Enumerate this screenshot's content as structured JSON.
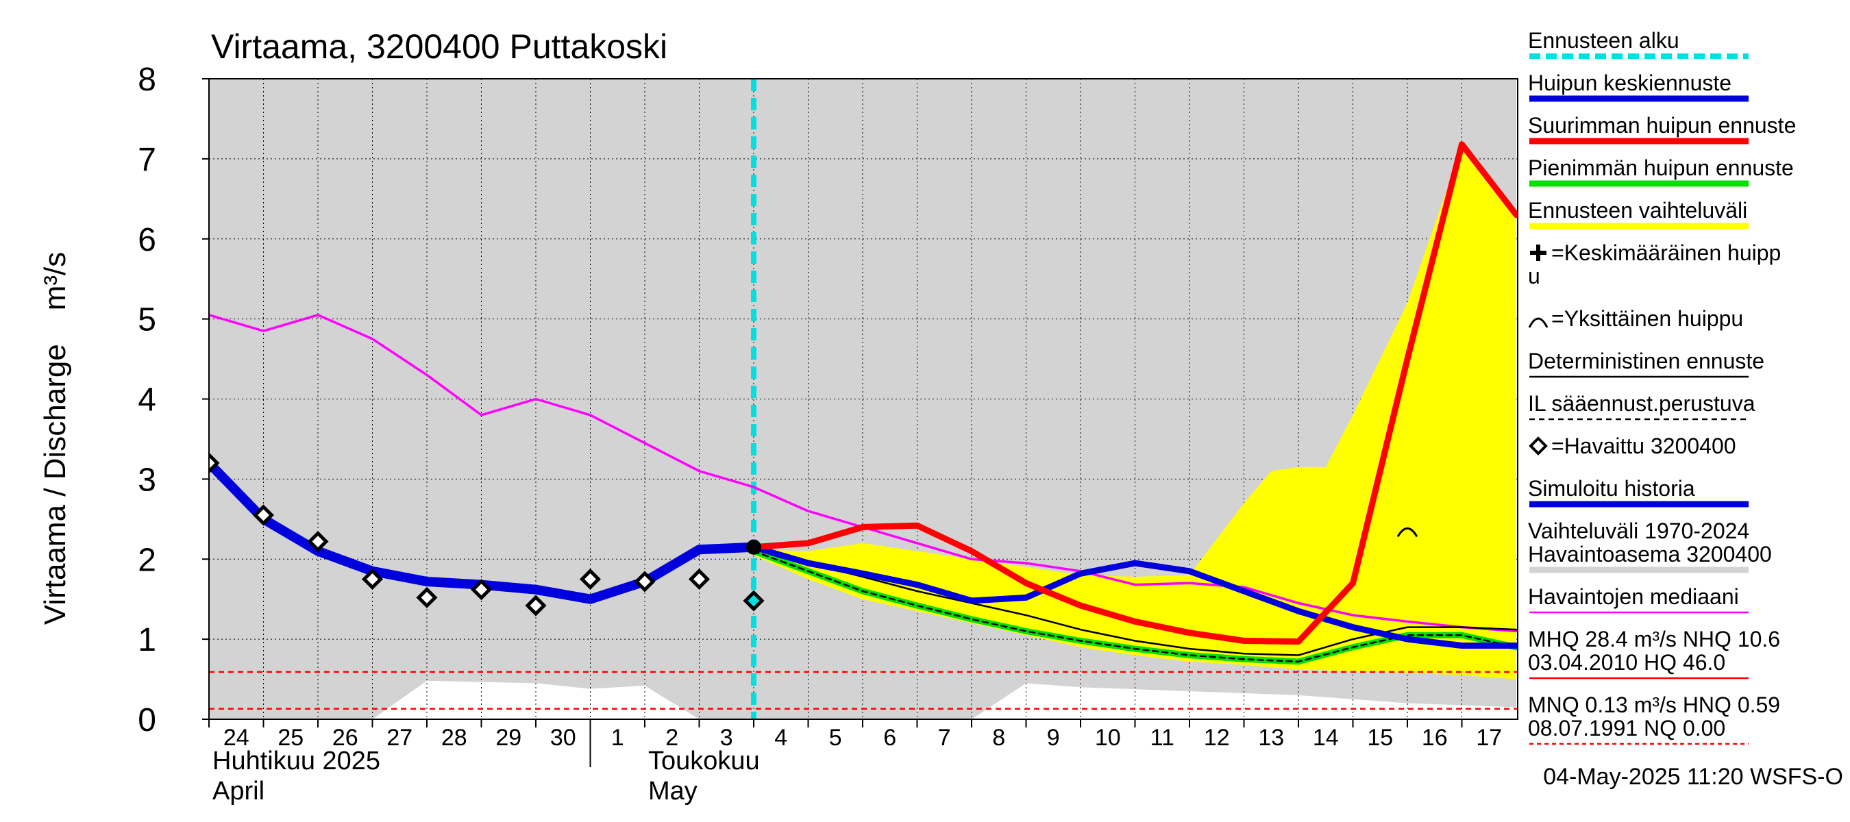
{
  "chart_data": {
    "type": "line",
    "title": "Virtaama, 3200400 Puttakoski",
    "ylabel": "Virtaama / Discharge    m³/s",
    "ylim": [
      0,
      8
    ],
    "yticks": [
      "0",
      "1",
      "2",
      "3",
      "4",
      "5",
      "6",
      "7",
      "8"
    ],
    "x_domain": [
      24,
      48
    ],
    "day_ticks": [
      {
        "x": 24,
        "label": "24"
      },
      {
        "x": 25,
        "label": "25"
      },
      {
        "x": 26,
        "label": "26"
      },
      {
        "x": 27,
        "label": "27"
      },
      {
        "x": 28,
        "label": "28"
      },
      {
        "x": 29,
        "label": "29"
      },
      {
        "x": 30,
        "label": "30"
      },
      {
        "x": 31,
        "label": "1"
      },
      {
        "x": 32,
        "label": "2"
      },
      {
        "x": 33,
        "label": "3"
      },
      {
        "x": 34,
        "label": "4"
      },
      {
        "x": 35,
        "label": "5"
      },
      {
        "x": 36,
        "label": "6"
      },
      {
        "x": 37,
        "label": "7"
      },
      {
        "x": 38,
        "label": "8"
      },
      {
        "x": 39,
        "label": "9"
      },
      {
        "x": 40,
        "label": "10"
      },
      {
        "x": 41,
        "label": "11"
      },
      {
        "x": 42,
        "label": "12"
      },
      {
        "x": 43,
        "label": "13"
      },
      {
        "x": 44,
        "label": "14"
      },
      {
        "x": 45,
        "label": "15"
      },
      {
        "x": 46,
        "label": "16"
      },
      {
        "x": 47,
        "label": "17"
      }
    ],
    "month_labels": [
      {
        "x": 24,
        "fi": "Huhtikuu  2025",
        "en": "April"
      },
      {
        "x": 32,
        "fi": "Toukokuu",
        "en": "May"
      }
    ],
    "month_divider_x": 31,
    "forecast_start_x": 34,
    "history_range": {
      "upper": [
        [
          24,
          8
        ],
        [
          48,
          8
        ]
      ],
      "lower": [
        [
          24,
          0
        ],
        [
          27,
          0
        ],
        [
          28,
          0.48
        ],
        [
          30,
          0.45
        ],
        [
          31,
          0.38
        ],
        [
          32,
          0.42
        ],
        [
          33,
          0
        ],
        [
          38,
          0
        ],
        [
          39,
          0.45
        ],
        [
          40,
          0.4
        ],
        [
          42,
          0.35
        ],
        [
          44,
          0.3
        ],
        [
          46,
          0.2
        ],
        [
          48,
          0.15
        ]
      ]
    },
    "forecast_range": {
      "upper": [
        [
          34,
          2.12
        ],
        [
          35,
          2.1
        ],
        [
          36,
          2.2
        ],
        [
          37,
          2.1
        ],
        [
          38,
          2.0
        ],
        [
          39,
          1.9
        ],
        [
          40,
          1.8
        ],
        [
          41,
          1.78
        ],
        [
          42,
          1.8
        ],
        [
          43,
          2.7
        ],
        [
          43.5,
          3.1
        ],
        [
          44,
          3.15
        ],
        [
          44.5,
          3.15
        ],
        [
          45,
          3.8
        ],
        [
          46,
          5.2
        ],
        [
          47,
          7.15
        ],
        [
          48,
          6.3
        ]
      ],
      "lower": [
        [
          34,
          2.05
        ],
        [
          35,
          1.75
        ],
        [
          36,
          1.5
        ],
        [
          37,
          1.35
        ],
        [
          38,
          1.2
        ],
        [
          39,
          1.05
        ],
        [
          40,
          0.9
        ],
        [
          41,
          0.8
        ],
        [
          42,
          0.72
        ],
        [
          43,
          0.68
        ],
        [
          44,
          0.62
        ],
        [
          45,
          0.6
        ],
        [
          46,
          0.58
        ],
        [
          47,
          0.55
        ],
        [
          48,
          0.5
        ]
      ]
    },
    "series": [
      {
        "name": "Havaintojen mediaani",
        "color": "#ff00ff",
        "width": 3.5,
        "points": [
          [
            24,
            5.05
          ],
          [
            25,
            4.85
          ],
          [
            26,
            5.05
          ],
          [
            27,
            4.75
          ],
          [
            28,
            4.3
          ],
          [
            29,
            3.8
          ],
          [
            30,
            4.0
          ],
          [
            31,
            3.8
          ],
          [
            32,
            3.45
          ],
          [
            33,
            3.1
          ],
          [
            34,
            2.9
          ],
          [
            35,
            2.6
          ],
          [
            36,
            2.4
          ],
          [
            37,
            2.2
          ],
          [
            38,
            2.0
          ],
          [
            39,
            1.95
          ],
          [
            40,
            1.85
          ],
          [
            41,
            1.68
          ],
          [
            42,
            1.7
          ],
          [
            43,
            1.65
          ],
          [
            44,
            1.45
          ],
          [
            45,
            1.3
          ],
          [
            46,
            1.22
          ],
          [
            47,
            1.15
          ],
          [
            48,
            1.1
          ]
        ]
      },
      {
        "name": "Simuloitu historia",
        "color": "#0000dd",
        "width": 14,
        "points": [
          [
            24,
            3.2
          ],
          [
            25,
            2.5
          ],
          [
            26,
            2.1
          ],
          [
            27,
            1.85
          ],
          [
            28,
            1.72
          ],
          [
            29,
            1.68
          ],
          [
            30,
            1.62
          ],
          [
            31,
            1.5
          ],
          [
            32,
            1.72
          ],
          [
            33,
            2.12
          ],
          [
            34,
            2.15
          ]
        ]
      },
      {
        "name": "Pienimmän huipun ennuste",
        "color": "#00e000",
        "width": 9,
        "points": [
          [
            34,
            2.1
          ],
          [
            35,
            1.85
          ],
          [
            36,
            1.6
          ],
          [
            37,
            1.42
          ],
          [
            38,
            1.25
          ],
          [
            39,
            1.1
          ],
          [
            40,
            0.98
          ],
          [
            41,
            0.88
          ],
          [
            42,
            0.8
          ],
          [
            43,
            0.75
          ],
          [
            44,
            0.72
          ],
          [
            45,
            0.9
          ],
          [
            46,
            1.05
          ],
          [
            47,
            1.05
          ],
          [
            48,
            0.9
          ]
        ]
      },
      {
        "name": "IL sääennust.perustuva",
        "color": "#000000",
        "width": 2.5,
        "dash": true,
        "points": [
          [
            34,
            2.1
          ],
          [
            35,
            1.85
          ],
          [
            36,
            1.6
          ],
          [
            37,
            1.42
          ],
          [
            38,
            1.25
          ],
          [
            39,
            1.1
          ],
          [
            40,
            0.98
          ],
          [
            41,
            0.88
          ],
          [
            42,
            0.8
          ],
          [
            43,
            0.75
          ],
          [
            44,
            0.72
          ],
          [
            45,
            0.9
          ],
          [
            46,
            1.05
          ],
          [
            47,
            1.05
          ],
          [
            48,
            0.9
          ]
        ]
      },
      {
        "name": "Deterministinen ennuste",
        "color": "#000000",
        "width": 2.5,
        "points": [
          [
            34,
            2.12
          ],
          [
            35,
            1.95
          ],
          [
            36,
            1.78
          ],
          [
            37,
            1.6
          ],
          [
            38,
            1.45
          ],
          [
            39,
            1.3
          ],
          [
            40,
            1.12
          ],
          [
            41,
            0.98
          ],
          [
            42,
            0.88
          ],
          [
            43,
            0.82
          ],
          [
            44,
            0.8
          ],
          [
            45,
            1.0
          ],
          [
            46,
            1.15
          ],
          [
            47,
            1.15
          ],
          [
            48,
            1.12
          ]
        ]
      },
      {
        "name": "Huipun keskiennuste",
        "color": "#0000dd",
        "width": 9,
        "points": [
          [
            34,
            2.15
          ],
          [
            35,
            1.95
          ],
          [
            36,
            1.82
          ],
          [
            37,
            1.68
          ],
          [
            38,
            1.48
          ],
          [
            39,
            1.52
          ],
          [
            40,
            1.82
          ],
          [
            41,
            1.95
          ],
          [
            42,
            1.85
          ],
          [
            43,
            1.6
          ],
          [
            44,
            1.35
          ],
          [
            45,
            1.15
          ],
          [
            46,
            1.0
          ],
          [
            47,
            0.92
          ],
          [
            48,
            0.92
          ]
        ]
      },
      {
        "name": "Suurimman huipun ennuste",
        "color": "#ff0000",
        "width": 9,
        "points": [
          [
            34,
            2.15
          ],
          [
            35,
            2.2
          ],
          [
            36,
            2.4
          ],
          [
            37,
            2.42
          ],
          [
            38,
            2.1
          ],
          [
            39,
            1.7
          ],
          [
            40,
            1.42
          ],
          [
            41,
            1.22
          ],
          [
            42,
            1.08
          ],
          [
            43,
            0.98
          ],
          [
            44,
            0.97
          ],
          [
            45,
            1.7
          ],
          [
            46,
            4.5
          ],
          [
            47,
            7.18
          ],
          [
            48,
            6.3
          ]
        ]
      }
    ],
    "observed": {
      "name": "=Havaittu 3200400",
      "points": [
        [
          24,
          3.2
        ],
        [
          25,
          2.55
        ],
        [
          26,
          2.22
        ],
        [
          27,
          1.75
        ],
        [
          28,
          1.52
        ],
        [
          29,
          1.62
        ],
        [
          30,
          1.42
        ],
        [
          31,
          1.75
        ],
        [
          32,
          1.72
        ],
        [
          33,
          1.75
        ],
        [
          34,
          1.48
        ]
      ]
    },
    "forecast_start_marker": [
      34,
      2.15
    ],
    "single_peak_marker": [
      46,
      2.35
    ],
    "ref_lines": [
      {
        "y": 0.59,
        "color": "#ff0000"
      },
      {
        "y": 0.13,
        "color": "#ff0000"
      }
    ],
    "legend": [
      {
        "label": "Ennusteen alku",
        "color": "#00e0e0",
        "style": "dashed-thick"
      },
      {
        "label": "Huipun keskiennuste",
        "color": "#0000dd",
        "style": "thick"
      },
      {
        "label": "Suurimman huipun ennuste",
        "color": "#ff0000",
        "style": "thick"
      },
      {
        "label": "Pienimmän huipun ennuste",
        "color": "#00e000",
        "style": "thick"
      },
      {
        "label": "Ennusteen vaihteluväli",
        "color": "#ffff00",
        "style": "thick"
      },
      {
        "label": "=Keskimääräinen huipp",
        "label2": "u",
        "style": "plus"
      },
      {
        "label": "=Yksittäinen huippu",
        "style": "arc"
      },
      {
        "label": "Deterministinen ennuste",
        "color": "#000000",
        "style": "thin"
      },
      {
        "label": "IL sääennust.perustuva",
        "color": "#000000",
        "style": "dashed-thin"
      },
      {
        "label": "=Havaittu 3200400",
        "style": "diamond"
      },
      {
        "label": "Simuloitu historia",
        "color": "#0000dd",
        "style": "thick"
      },
      {
        "label": "Vaihteluväli 1970-2024",
        "label2": " Havaintoasema 3200400",
        "color": "#d3d3d3",
        "style": "thick"
      },
      {
        "label": "Havaintojen mediaani",
        "color": "#ff00ff",
        "style": "thin"
      },
      {
        "label": "MHQ 28.4 m³/s NHQ 10.6",
        "label2": "03.04.2010 HQ 46.0",
        "color": "#ff0000",
        "style": "thin"
      },
      {
        "label": "MNQ 0.13 m³/s HNQ 0.59",
        "label2": "08.07.1991 NQ 0.00",
        "color": "#ff0000",
        "style": "dotted"
      }
    ],
    "footer": "04-May-2025 11:20 WSFS-O"
  }
}
